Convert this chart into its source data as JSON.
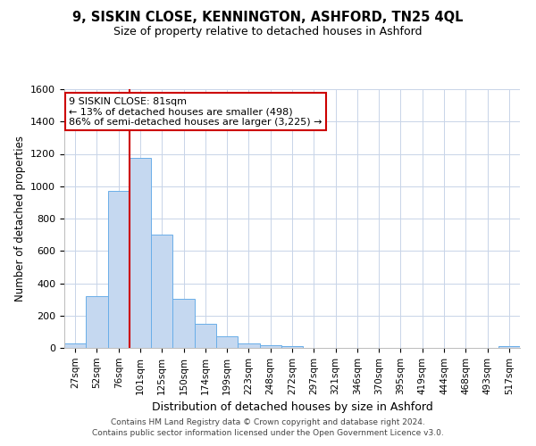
{
  "title": "9, SISKIN CLOSE, KENNINGTON, ASHFORD, TN25 4QL",
  "subtitle": "Size of property relative to detached houses in Ashford",
  "xlabel": "Distribution of detached houses by size in Ashford",
  "ylabel": "Number of detached properties",
  "categories": [
    "27sqm",
    "52sqm",
    "76sqm",
    "101sqm",
    "125sqm",
    "150sqm",
    "174sqm",
    "199sqm",
    "223sqm",
    "248sqm",
    "272sqm",
    "297sqm",
    "321sqm",
    "346sqm",
    "370sqm",
    "395sqm",
    "419sqm",
    "444sqm",
    "468sqm",
    "493sqm",
    "517sqm"
  ],
  "values": [
    30,
    320,
    970,
    1175,
    700,
    305,
    150,
    70,
    25,
    15,
    10,
    0,
    0,
    0,
    0,
    0,
    0,
    0,
    0,
    0,
    10
  ],
  "bar_color": "#c5d8f0",
  "bar_edge_color": "#6aaee8",
  "vline_color": "#cc0000",
  "annotation_text": "9 SISKIN CLOSE: 81sqm\n← 13% of detached houses are smaller (498)\n86% of semi-detached houses are larger (3,225) →",
  "annotation_box_color": "#ffffff",
  "annotation_box_edge": "#cc0000",
  "ylim": [
    0,
    1600
  ],
  "yticks": [
    0,
    200,
    400,
    600,
    800,
    1000,
    1200,
    1400,
    1600
  ],
  "footer1": "Contains HM Land Registry data © Crown copyright and database right 2024.",
  "footer2": "Contains public sector information licensed under the Open Government Licence v3.0.",
  "background_color": "#ffffff",
  "grid_color": "#c8d4e8"
}
